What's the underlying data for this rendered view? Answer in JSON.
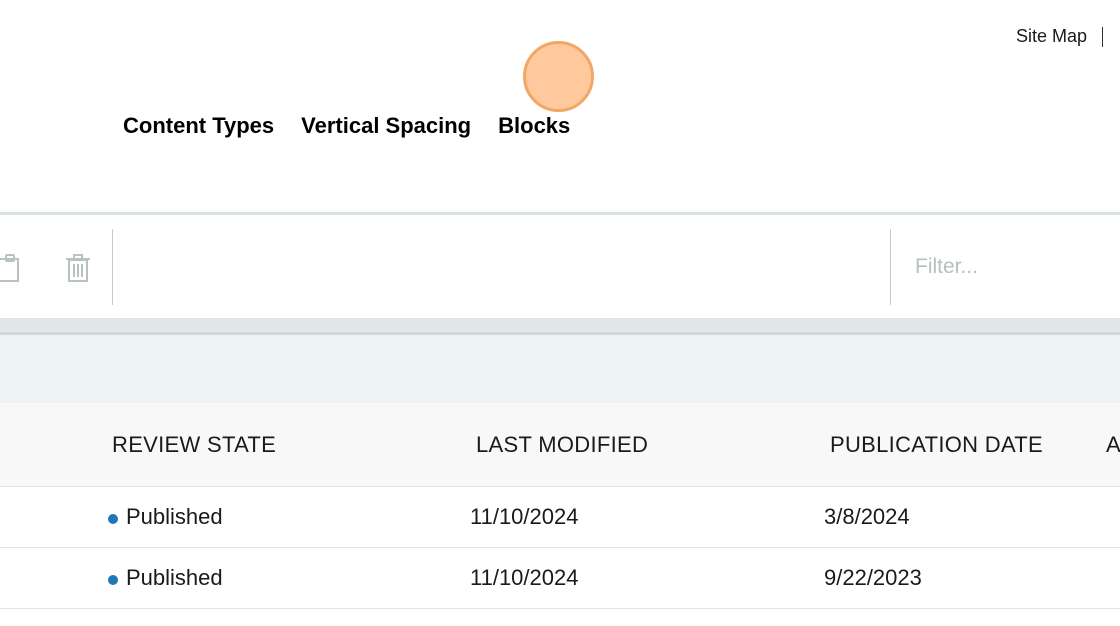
{
  "topbar": {
    "site_map": "Site Map"
  },
  "nav": {
    "items": [
      "Content Types",
      "Vertical Spacing",
      "Blocks"
    ]
  },
  "toolbar": {
    "filter_placeholder": "Filter..."
  },
  "icons": {
    "paste": "paste-icon",
    "trash": "trash-icon"
  },
  "table": {
    "columns": [
      "REVIEW STATE",
      "LAST MODIFIED",
      "PUBLICATION DATE",
      "A"
    ],
    "rows": [
      {
        "review_state": "Published",
        "last_modified": "11/10/2024",
        "publication_date": "3/8/2024"
      },
      {
        "review_state": "Published",
        "last_modified": "11/10/2024",
        "publication_date": "9/22/2023"
      }
    ]
  },
  "colors": {
    "published_dot": "#1f77b4",
    "cursor": "#f3a765"
  }
}
